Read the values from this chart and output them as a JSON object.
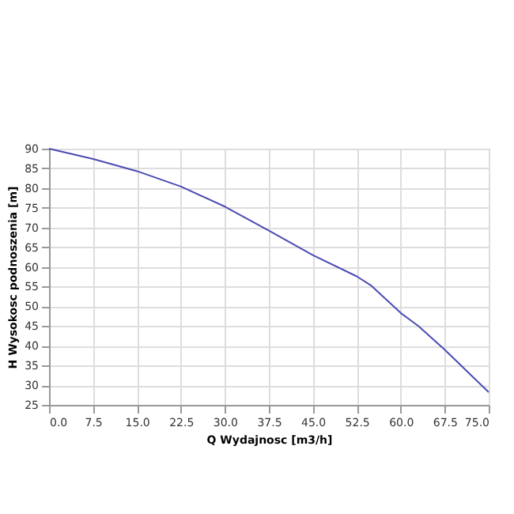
{
  "chart_data": {
    "type": "line",
    "xlabel": "Q Wydajnosc [m3/h]",
    "ylabel": "H Wysokosc podnoszenia [m]",
    "x": [
      0,
      7.5,
      15,
      22.5,
      30,
      37.5,
      45,
      52.5,
      55,
      60,
      63,
      67.5,
      75
    ],
    "series": [
      {
        "color": "#4b4bb4",
        "values": [
          90,
          87.4,
          84.3,
          80.4,
          75.3,
          69.2,
          63.0,
          57.6,
          55.2,
          48.3,
          45.0,
          39.0,
          28.2
        ]
      }
    ],
    "xlim": [
      0,
      75
    ],
    "xticks": [
      {
        "value": 0,
        "label": "0.0"
      },
      7.5,
      {
        "value": 15,
        "label": "15.0"
      },
      22.5,
      {
        "value": 30,
        "label": "30.0"
      },
      37.5,
      {
        "value": 45,
        "label": "45.0"
      },
      52.5,
      {
        "value": 60,
        "label": "60.0"
      },
      67.5,
      {
        "value": 75,
        "label": "75.0"
      }
    ],
    "ylim": [
      25,
      90
    ],
    "yticks": [
      25,
      30,
      35,
      40,
      45,
      50,
      55,
      60,
      65,
      70,
      75,
      80,
      85,
      90
    ],
    "grid": true,
    "marker": "none",
    "line_style": "solid"
  }
}
